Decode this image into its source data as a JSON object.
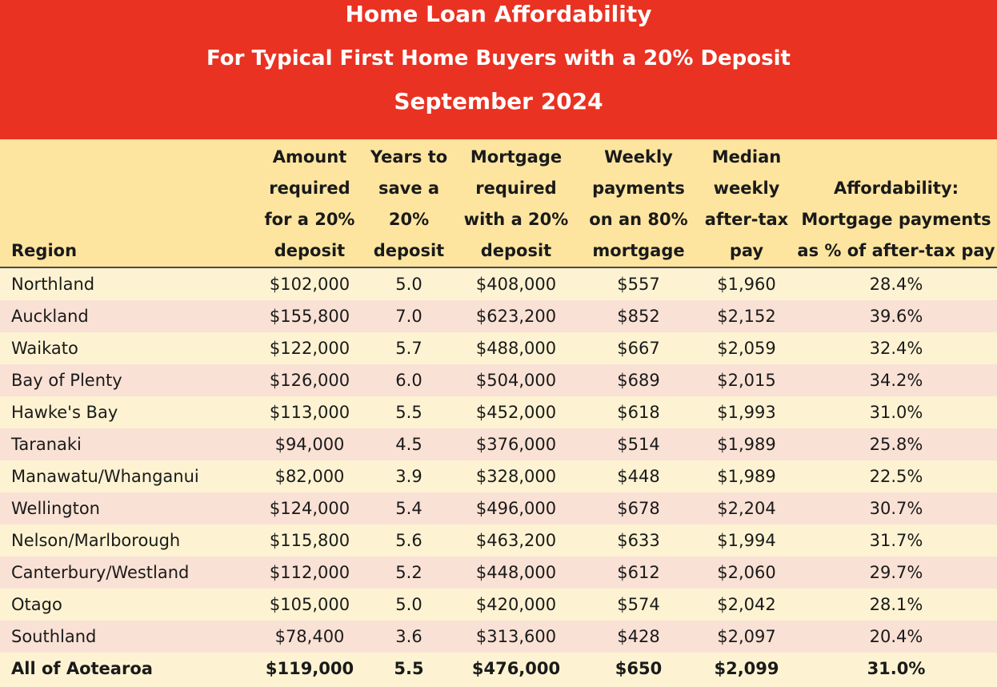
{
  "banner": {
    "title": "Home Loan Affordability",
    "subtitle": "For Typical First Home Buyers with a 20% Deposit",
    "date": "September 2024"
  },
  "table": {
    "headers": [
      "Region",
      "Amount required for a 20% deposit",
      "Years to save a 20% deposit",
      "Mortgage required with a 20% deposit",
      "Weekly payments on an 80% mortgage",
      "Median weekly after-tax pay",
      "Affordability: Mortgage payments as % of after-tax pay"
    ],
    "rows": [
      [
        "Northland",
        "$102,000",
        "5.0",
        "$408,000",
        "$557",
        "$1,960",
        "28.4%"
      ],
      [
        "Auckland",
        "$155,800",
        "7.0",
        "$623,200",
        "$852",
        "$2,152",
        "39.6%"
      ],
      [
        "Waikato",
        "$122,000",
        "5.7",
        "$488,000",
        "$667",
        "$2,059",
        "32.4%"
      ],
      [
        "Bay of Plenty",
        "$126,000",
        "6.0",
        "$504,000",
        "$689",
        "$2,015",
        "34.2%"
      ],
      [
        "Hawke's Bay",
        "$113,000",
        "5.5",
        "$452,000",
        "$618",
        "$1,993",
        "31.0%"
      ],
      [
        "Taranaki",
        "$94,000",
        "4.5",
        "$376,000",
        "$514",
        "$1,989",
        "25.8%"
      ],
      [
        "Manawatu/Whanganui",
        "$82,000",
        "3.9",
        "$328,000",
        "$448",
        "$1,989",
        "22.5%"
      ],
      [
        "Wellington",
        "$124,000",
        "5.4",
        "$496,000",
        "$678",
        "$2,204",
        "30.7%"
      ],
      [
        "Nelson/Marlborough",
        "$115,800",
        "5.6",
        "$463,200",
        "$633",
        "$1,994",
        "31.7%"
      ],
      [
        "Canterbury/Westland",
        "$112,000",
        "5.2",
        "$448,000",
        "$612",
        "$2,060",
        "29.7%"
      ],
      [
        "Otago",
        "$105,000",
        "5.0",
        "$420,000",
        "$574",
        "$2,042",
        "28.1%"
      ],
      [
        "Southland",
        "$78,400",
        "3.6",
        "$313,600",
        "$428",
        "$2,097",
        "20.4%"
      ]
    ],
    "total": [
      "All of Aotearoa",
      "$119,000",
      "5.5",
      "$476,000",
      "$650",
      "$2,099",
      "31.0%"
    ]
  }
}
